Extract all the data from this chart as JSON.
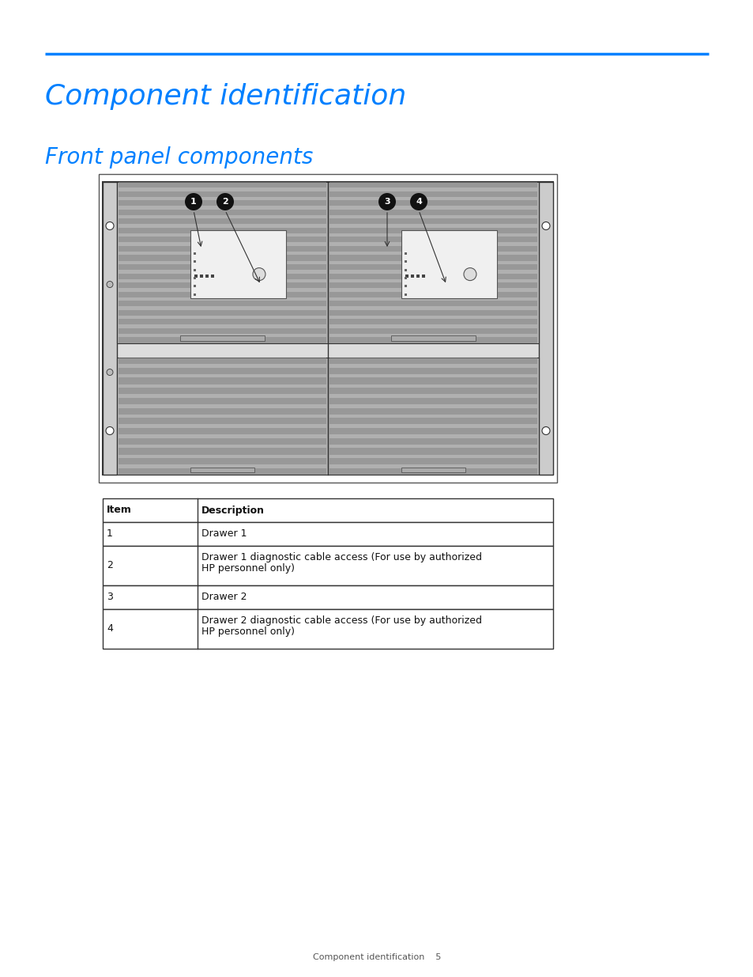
{
  "title1": "Component identification",
  "title2": "Front panel components",
  "title_color": "#0080FF",
  "line_color": "#0080FF",
  "bg_color": "#FFFFFF",
  "table_headers": [
    "Item",
    "Description"
  ],
  "table_rows": [
    [
      "1",
      "Drawer 1"
    ],
    [
      "2",
      "Drawer 1 diagnostic cable access (For use by authorized\nHP personnel only)"
    ],
    [
      "3",
      "Drawer 2"
    ],
    [
      "4",
      "Drawer 2 diagnostic cable access (For use by authorized\nHP personnel only)"
    ]
  ],
  "footer_text": "Component identification    5",
  "callout_labels": [
    "1",
    "2",
    "3",
    "4"
  ]
}
